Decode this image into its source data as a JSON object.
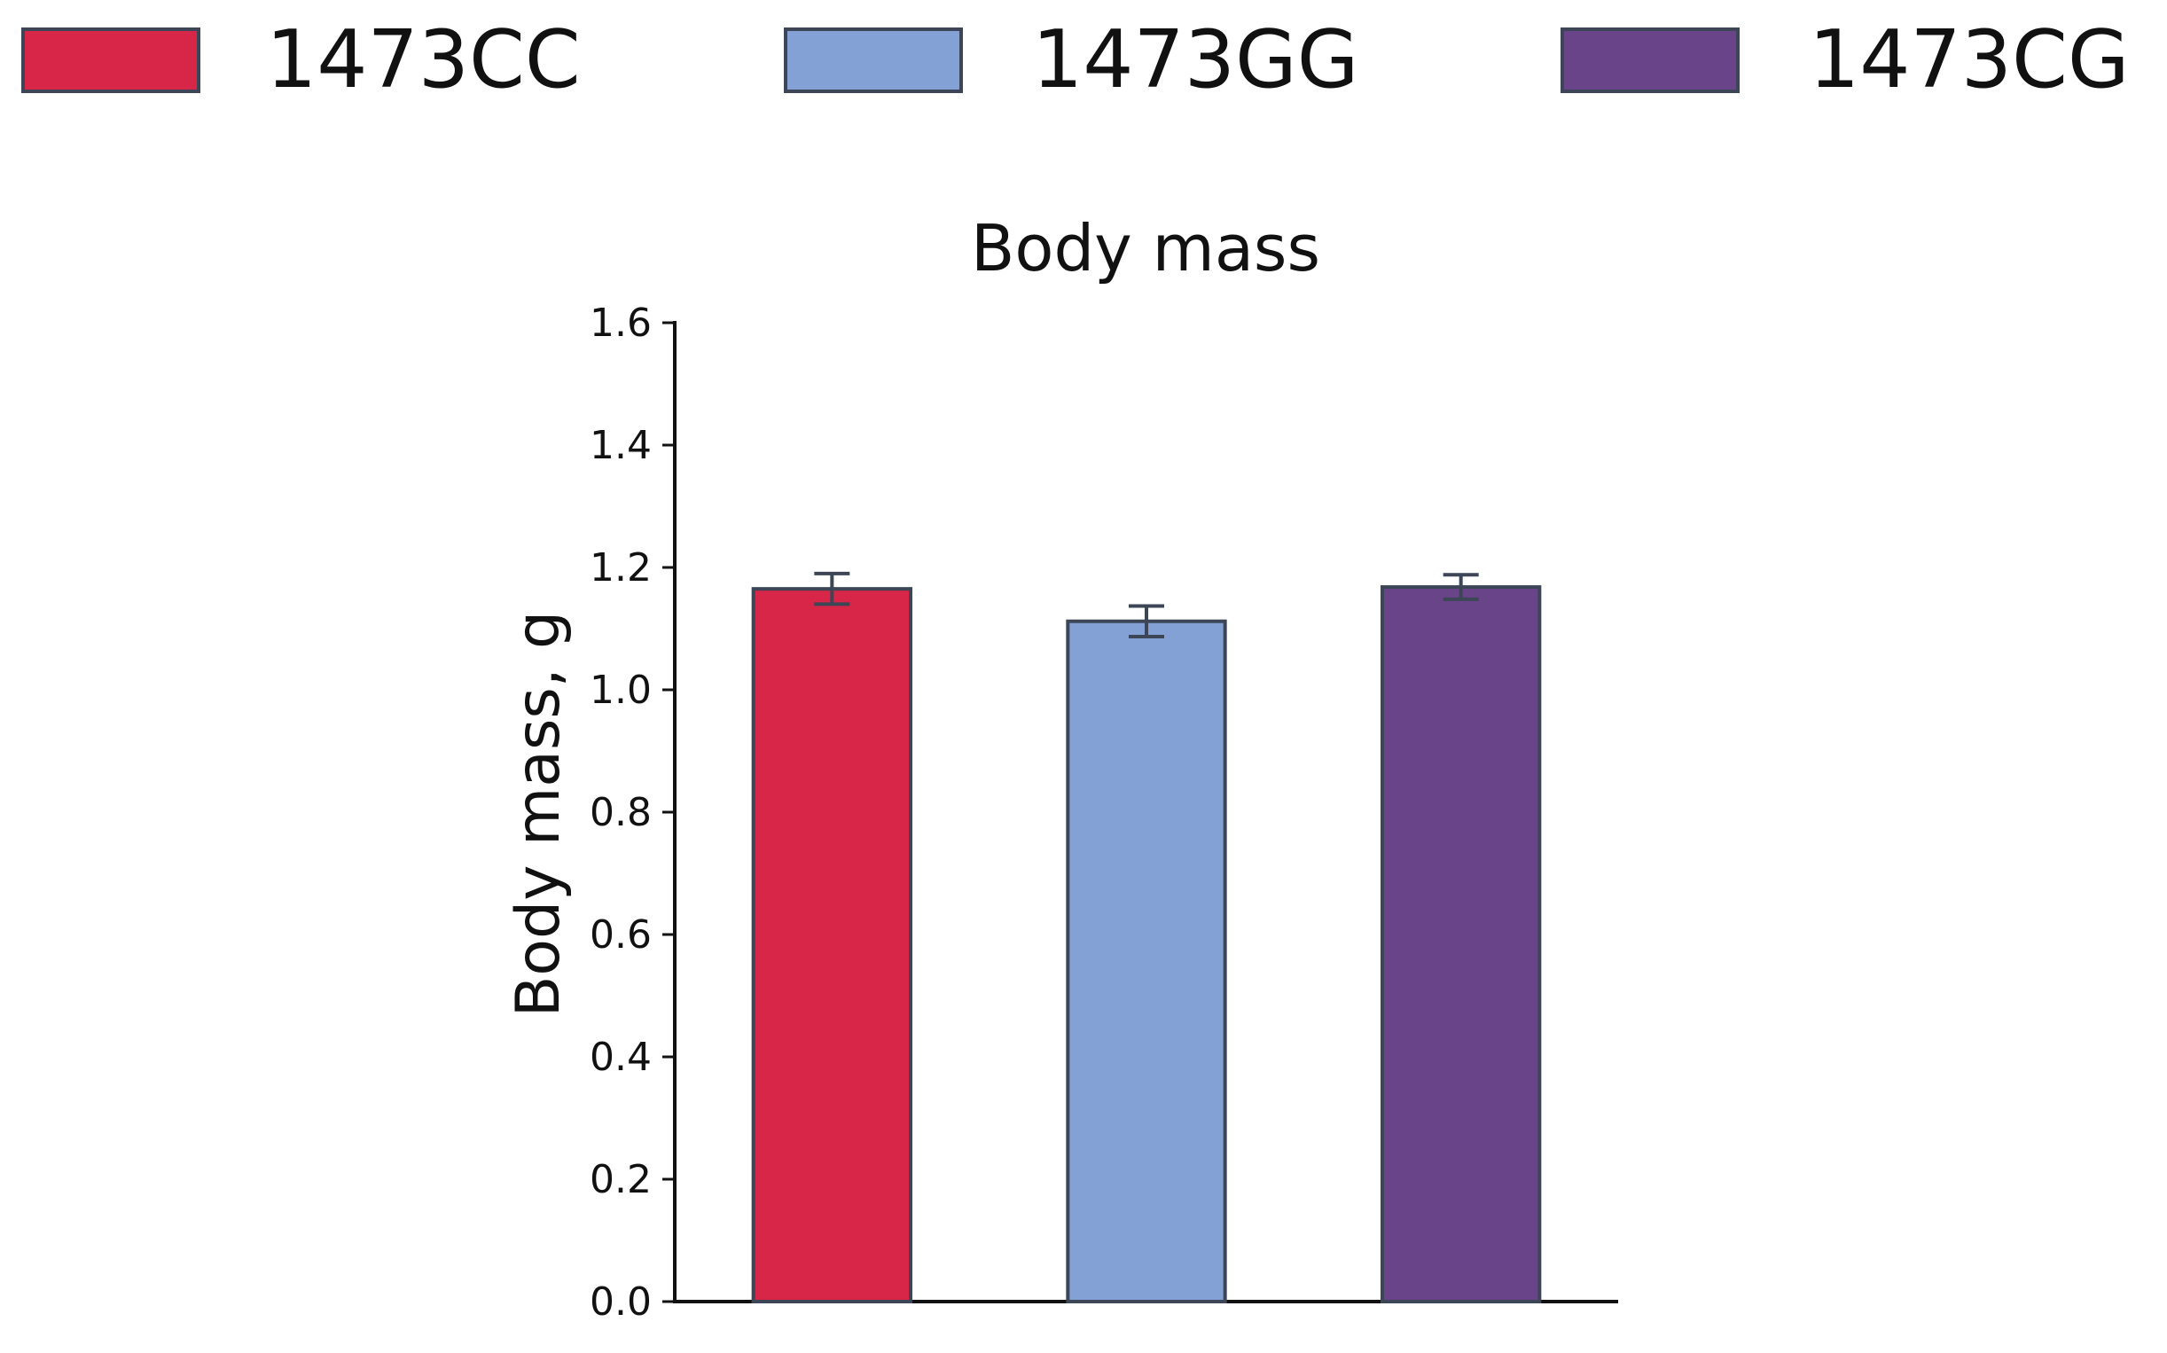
{
  "chart_data": {
    "type": "bar",
    "title": "Body mass",
    "xlabel": "",
    "ylabel": "Body mass, g",
    "ylim": [
      0,
      1.6
    ],
    "yticks": [
      0.0,
      0.2,
      0.4,
      0.6,
      0.8,
      1.0,
      1.2,
      1.4,
      1.6
    ],
    "ytick_labels": [
      "0.0",
      "0.2",
      "0.4",
      "0.6",
      "0.8",
      "1.0",
      "1.2",
      "1.4",
      "1.6"
    ],
    "categories": [
      "1473CC",
      "1473GG",
      "1473CG"
    ],
    "values": [
      1.165,
      1.112,
      1.168
    ],
    "errors": [
      0.025,
      0.025,
      0.02
    ],
    "colors": [
      "#d72648",
      "#84a1d6",
      "#694489"
    ],
    "edge_color": "#3c4656",
    "legend": {
      "position": "top",
      "entries": [
        "1473CC",
        "1473GG",
        "1473CG"
      ]
    },
    "grid": false
  }
}
